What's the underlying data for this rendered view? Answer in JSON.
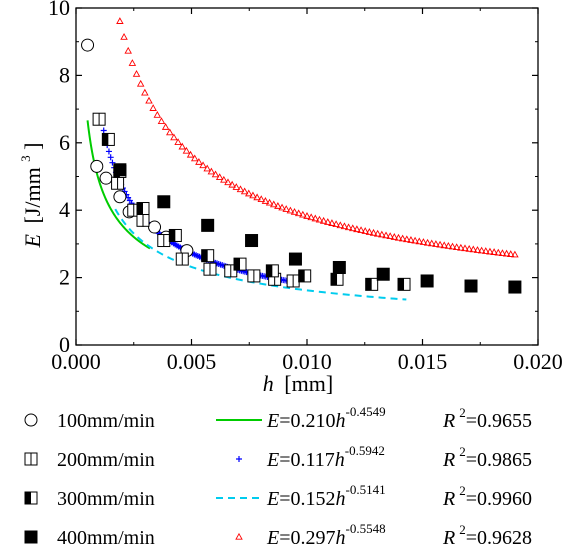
{
  "chart_data": {
    "type": "scatter",
    "x_axis": {
      "label_var": "h",
      "label_unit": "[mm]",
      "lim": [
        0.0,
        0.02
      ],
      "ticks": [
        0.0,
        0.005,
        0.01,
        0.015,
        0.02
      ],
      "tick_labels": [
        "0.000",
        "0.005",
        "0.010",
        "0.015",
        "0.020"
      ]
    },
    "y_axis": {
      "label_var": "E",
      "label_unit": "[J/mm",
      "label_exp": "3",
      "label_close": "]",
      "lim": [
        0,
        10
      ],
      "ticks": [
        0,
        2,
        4,
        6,
        8,
        10
      ],
      "tick_labels": [
        "0",
        "2",
        "4",
        "6",
        "8",
        "10"
      ]
    },
    "grid": false,
    "legend_position": "below",
    "series": [
      {
        "name": "100mm/min",
        "marker": "open-circle",
        "fit_style": "solid",
        "fit_marker": "",
        "color": "#00cc00",
        "coef": 0.21,
        "exponent": -0.4549,
        "fit_range": [
          0.0005,
          0.0032
        ],
        "fit_text": {
          "var": "E",
          "eq": "=0.210",
          "h": "h",
          "exp": "-0.4549",
          "r": "R",
          "r2exp": "2",
          "rval": "=0.9655"
        },
        "points": [
          {
            "x": 0.0005,
            "y": 8.9
          },
          {
            "x": 0.0009,
            "y": 5.3
          },
          {
            "x": 0.0013,
            "y": 4.95
          },
          {
            "x": 0.0019,
            "y": 4.4
          },
          {
            "x": 0.0023,
            "y": 3.95
          },
          {
            "x": 0.0029,
            "y": 3.7
          },
          {
            "x": 0.0034,
            "y": 3.5
          },
          {
            "x": 0.0039,
            "y": 3.2
          },
          {
            "x": 0.0048,
            "y": 2.8
          }
        ]
      },
      {
        "name": "200mm/min",
        "marker": "half-open-square-v",
        "fit_style": "markers",
        "fit_marker": "+",
        "color": "#0000ff",
        "coef": 0.117,
        "exponent": -0.5942,
        "fit_range": [
          0.0012,
          0.0095
        ],
        "fit_text": {
          "var": "E",
          "eq": "=0.117",
          "h": "h",
          "exp": "-0.5942",
          "r": "R",
          "r2exp": "2",
          "rval": "=0.9865"
        },
        "points": [
          {
            "x": 0.001,
            "y": 6.7
          },
          {
            "x": 0.0018,
            "y": 4.8
          },
          {
            "x": 0.0025,
            "y": 4.0
          },
          {
            "x": 0.0029,
            "y": 3.7
          },
          {
            "x": 0.0038,
            "y": 3.1
          },
          {
            "x": 0.0046,
            "y": 2.55
          },
          {
            "x": 0.0058,
            "y": 2.25
          },
          {
            "x": 0.0067,
            "y": 2.2
          },
          {
            "x": 0.0077,
            "y": 2.05
          },
          {
            "x": 0.0086,
            "y": 1.95
          },
          {
            "x": 0.0094,
            "y": 1.9
          }
        ]
      },
      {
        "name": "300mm/min",
        "marker": "half-filled-square",
        "fit_style": "dashed",
        "fit_marker": "",
        "color": "#00ccee",
        "coef": 0.152,
        "exponent": -0.5141,
        "fit_range": [
          0.0017,
          0.0143
        ],
        "fit_text": {
          "var": "E",
          "eq": "=0.152",
          "h": "h",
          "exp": "-0.5141",
          "r": "R",
          "r2exp": "2",
          "rval": "=0.9960"
        },
        "points": [
          {
            "x": 0.0014,
            "y": 6.1
          },
          {
            "x": 0.0019,
            "y": 5.15
          },
          {
            "x": 0.0029,
            "y": 4.05
          },
          {
            "x": 0.0043,
            "y": 3.25
          },
          {
            "x": 0.0057,
            "y": 2.65
          },
          {
            "x": 0.0071,
            "y": 2.4
          },
          {
            "x": 0.0085,
            "y": 2.2
          },
          {
            "x": 0.0099,
            "y": 2.05
          },
          {
            "x": 0.0113,
            "y": 1.95
          },
          {
            "x": 0.0128,
            "y": 1.8
          },
          {
            "x": 0.0142,
            "y": 1.8
          }
        ]
      },
      {
        "name": "400mm/min",
        "marker": "filled-square",
        "fit_style": "markers",
        "fit_marker": "triangle",
        "color": "#ff0000",
        "coef": 0.297,
        "exponent": -0.5548,
        "fit_range": [
          0.0019,
          0.019
        ],
        "fit_text": {
          "var": "E",
          "eq": "=0.297",
          "h": "h",
          "exp": "-0.5548",
          "r": "R",
          "r2exp": "2",
          "rval": "=0.9628"
        },
        "points": [
          {
            "x": 0.0019,
            "y": 5.2
          },
          {
            "x": 0.0038,
            "y": 4.25
          },
          {
            "x": 0.0057,
            "y": 3.55
          },
          {
            "x": 0.0076,
            "y": 3.1
          },
          {
            "x": 0.0095,
            "y": 2.55
          },
          {
            "x": 0.0114,
            "y": 2.3
          },
          {
            "x": 0.0133,
            "y": 2.1
          },
          {
            "x": 0.0152,
            "y": 1.9
          },
          {
            "x": 0.0171,
            "y": 1.75
          },
          {
            "x": 0.019,
            "y": 1.72
          }
        ]
      }
    ]
  }
}
